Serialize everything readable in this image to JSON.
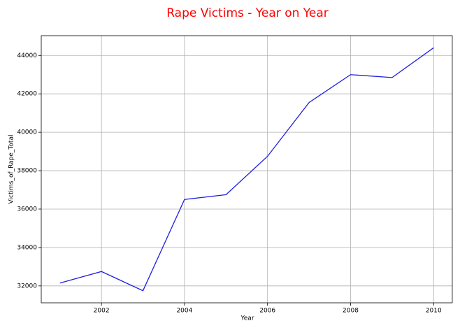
{
  "chart_data": {
    "type": "line",
    "title": "Rape Victims - Year on Year",
    "xlabel": "Year",
    "ylabel": "Victims_of_Rape_Total",
    "x": [
      2001,
      2002,
      2003,
      2004,
      2005,
      2006,
      2007,
      2008,
      2009,
      2010
    ],
    "series": [
      {
        "name": "Victims_of_Rape_Total",
        "color": "#1f1fe0",
        "values": [
          32150,
          32750,
          31750,
          36500,
          36750,
          38750,
          41550,
          43000,
          42850,
          44400
        ]
      }
    ],
    "xlim": [
      2000.55,
      2010.45
    ],
    "xticks": [
      2002,
      2004,
      2006,
      2008,
      2010
    ],
    "ylim": [
      31120,
      45030
    ],
    "yticks": [
      32000,
      34000,
      36000,
      38000,
      40000,
      42000,
      44000
    ],
    "grid": true,
    "title_color": "#ff0000"
  }
}
